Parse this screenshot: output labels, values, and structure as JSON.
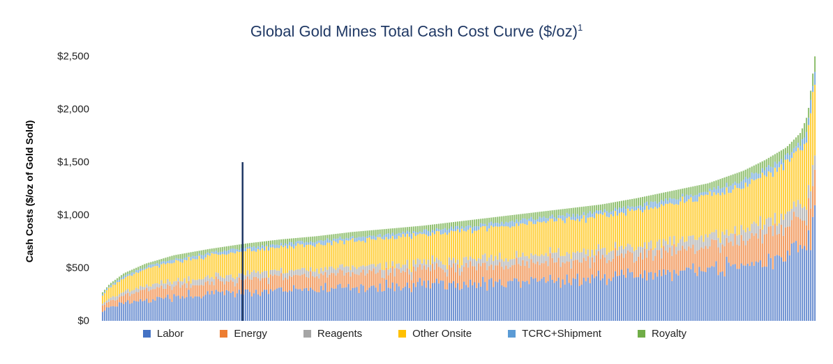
{
  "chart_data": {
    "type": "bar",
    "stacked": true,
    "title": "Global Gold Mines Total Cash Cost Curve ($/oz)",
    "title_superscript": "1",
    "ylabel": "Cash Costs ($/oz of Gold Sold)",
    "xlabel": "",
    "ylim": [
      0,
      2500
    ],
    "yticks": [
      "$0",
      "$500",
      "$1,000",
      "$1,500",
      "$2,000",
      "$2,500"
    ],
    "ytick_values": [
      0,
      500,
      1000,
      1500,
      2000,
      2500
    ],
    "num_mines": 340,
    "total_cost_curve": {
      "x_fraction": [
        0,
        0.01,
        0.03,
        0.06,
        0.1,
        0.15,
        0.2,
        0.25,
        0.3,
        0.35,
        0.4,
        0.45,
        0.5,
        0.55,
        0.6,
        0.65,
        0.7,
        0.75,
        0.8,
        0.85,
        0.9,
        0.93,
        0.96,
        0.98,
        0.99,
        1.0
      ],
      "total_cost": [
        270,
        350,
        450,
        540,
        620,
        680,
        730,
        770,
        800,
        840,
        870,
        900,
        940,
        980,
        1020,
        1060,
        1100,
        1160,
        1230,
        1300,
        1420,
        1520,
        1640,
        1780,
        1950,
        2500
      ]
    },
    "component_share_ranges": {
      "Labor": [
        0.3,
        0.45
      ],
      "Energy": [
        0.12,
        0.22
      ],
      "Reagents": [
        0.05,
        0.1
      ],
      "Other Onsite": [
        0.25,
        0.35
      ],
      "TCRC+Shipment": [
        0.02,
        0.06
      ],
      "Royalty": [
        0.04,
        0.08
      ]
    },
    "marker": {
      "x_fraction": 0.197,
      "value": 1500
    },
    "series": [
      {
        "name": "Labor",
        "color": "#4472c4"
      },
      {
        "name": "Energy",
        "color": "#ed7d31"
      },
      {
        "name": "Reagents",
        "color": "#a5a5a5"
      },
      {
        "name": "Other Onsite",
        "color": "#ffc000"
      },
      {
        "name": "TCRC+Shipment",
        "color": "#5b9bd5"
      },
      {
        "name": "Royalty",
        "color": "#70ad47"
      }
    ],
    "legend_position": "bottom",
    "grid": false
  }
}
